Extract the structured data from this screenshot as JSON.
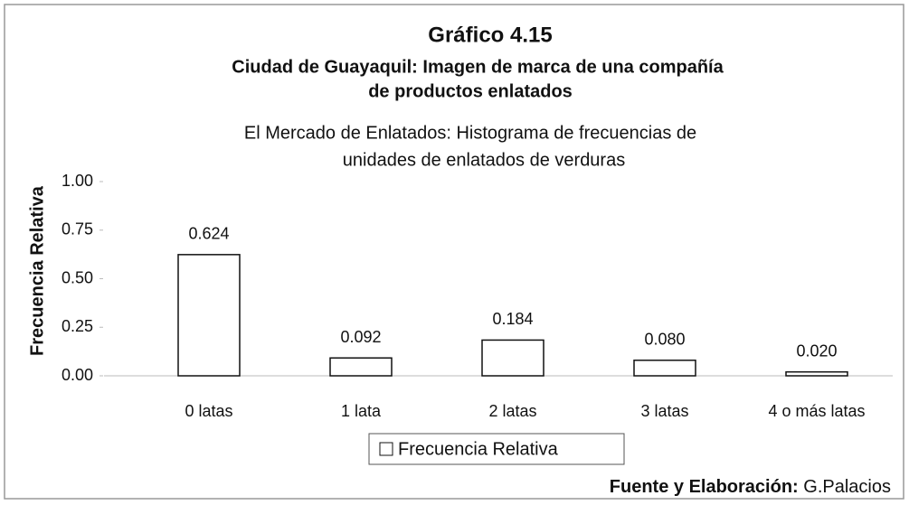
{
  "chart_data": {
    "type": "bar",
    "title": "Gráfico 4.15",
    "subtitle": [
      "Ciudad de Guayaquil: Imagen de marca de una compañía",
      "de productos enlatados"
    ],
    "chart_title": [
      "El Mercado de Enlatados: Histograma de frecuencias de",
      "unidades de enlatados de verduras"
    ],
    "y_label": "Frecuencia Relativa",
    "categories": [
      "0 latas",
      "1 lata",
      "2 latas",
      "3 latas",
      "4 o más latas"
    ],
    "series": [
      {
        "name": "Frecuencia Relativa",
        "color": "#ffffff",
        "values": [
          0.624,
          0.092,
          0.184,
          0.08,
          0.02
        ],
        "value_labels": [
          "0.624",
          "0.092",
          "0.184",
          "0.080",
          "0.020"
        ]
      }
    ],
    "ylim": [
      0,
      1
    ],
    "yticks": [
      {
        "value": 0,
        "label": "0.00"
      },
      {
        "value": 0.25,
        "label": "0.25"
      },
      {
        "value": 0.5,
        "label": "0.50"
      },
      {
        "value": 0.75,
        "label": "0.75"
      },
      {
        "value": 1,
        "label": "1.00"
      }
    ],
    "grid": false,
    "legend": "bottom",
    "source": {
      "label": "Fuente y Elaboración:",
      "text": "G.Palacios"
    }
  }
}
